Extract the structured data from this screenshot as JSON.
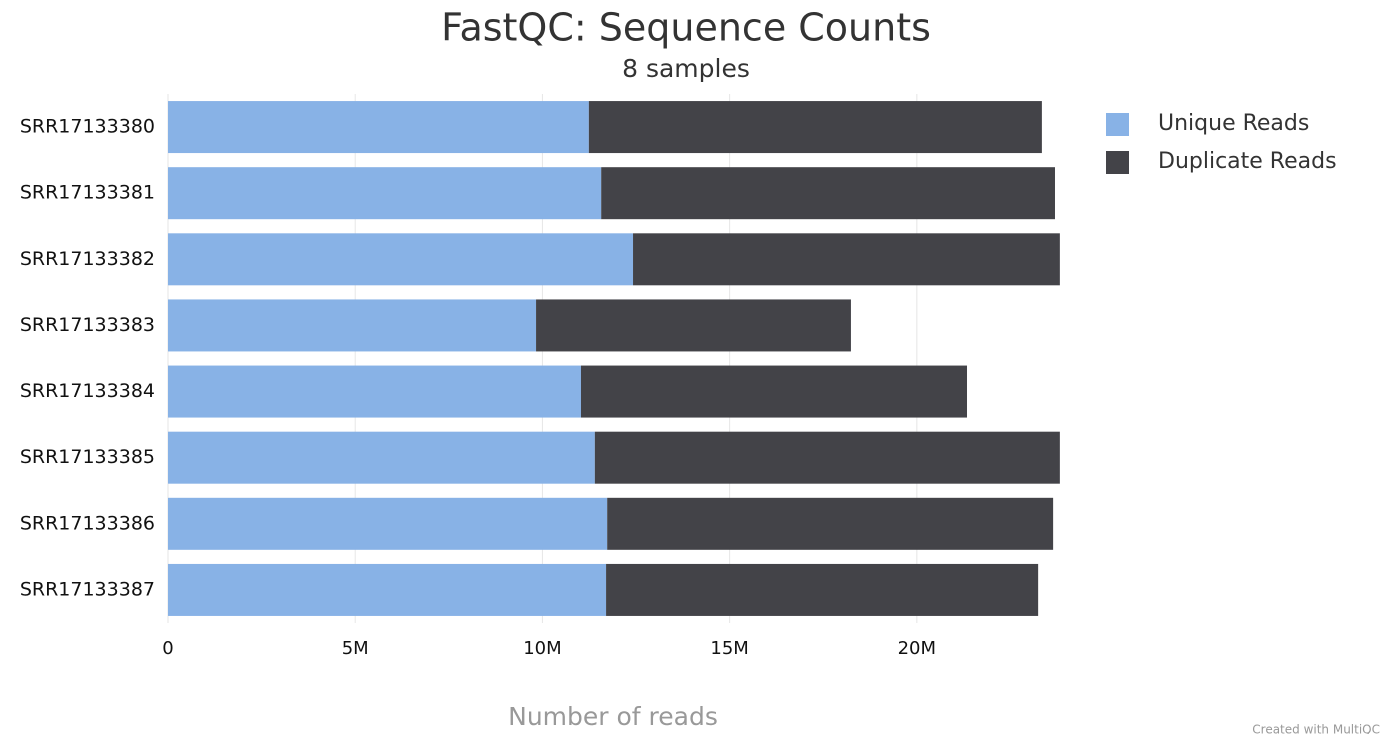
{
  "chart_data": {
    "type": "stacked-barh",
    "title": "FastQC: Sequence Counts",
    "subtitle": "8 samples",
    "x_label": "Number of reads",
    "credit": "Created with MultiQC",
    "categories": [
      "SRR17133380",
      "SRR17133381",
      "SRR17133382",
      "SRR17133383",
      "SRR17133384",
      "SRR17133385",
      "SRR17133386",
      "SRR17133387"
    ],
    "series": [
      {
        "name": "Unique Reads",
        "color": "#88b2e6",
        "values": [
          11240000,
          11570000,
          12420000,
          9830000,
          11030000,
          11400000,
          11730000,
          11700000
        ]
      },
      {
        "name": "Duplicate Reads",
        "color": "#434348",
        "values": [
          12100000,
          12120000,
          11400000,
          8410000,
          10310000,
          12420000,
          11910000,
          11540000
        ]
      }
    ],
    "xlim": [
      0,
      24000000
    ],
    "xticks": [
      0,
      {
        "value": 5000000,
        "label": "5M"
      },
      {
        "value": 10000000,
        "label": "10M"
      },
      {
        "value": 15000000,
        "label": "15M"
      },
      {
        "value": 20000000,
        "label": "20M"
      }
    ],
    "grid": true,
    "legend": "top-right"
  }
}
